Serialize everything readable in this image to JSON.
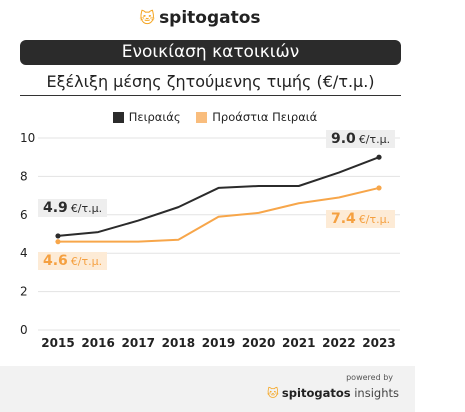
{
  "brand": {
    "name": "spitogatos",
    "icon": "cat-icon"
  },
  "header": {
    "title": "Ενοικίαση κατοικιών",
    "subtitle": "Εξέλιξη μέσης ζητούμενης τιμής (€/τ.μ.)"
  },
  "legend": [
    "Πειραιάς",
    "Προάστια Πειραιά"
  ],
  "annotations": {
    "unit": "€/τ.μ.",
    "piraeus_start": "4.9",
    "piraeus_end": "9.0",
    "suburbs_start": "4.6",
    "suburbs_end": "7.4"
  },
  "chart_data": {
    "type": "line",
    "x": [
      "2015",
      "2016",
      "2017",
      "2018",
      "2019",
      "2020",
      "2021",
      "2022",
      "2023"
    ],
    "series": [
      {
        "name": "Πειραιάς",
        "color": "#2b2b2b",
        "values": [
          4.9,
          5.1,
          5.7,
          6.4,
          7.4,
          7.5,
          7.5,
          8.2,
          9.0
        ]
      },
      {
        "name": "Προάστια Πειραιά",
        "color": "#f7a64a",
        "values": [
          4.6,
          4.6,
          4.6,
          4.7,
          5.9,
          6.1,
          6.6,
          6.9,
          7.4
        ]
      }
    ],
    "ylim": [
      0,
      10
    ],
    "yticks": [
      "0",
      "2",
      "4",
      "6",
      "8",
      "10"
    ],
    "grid": true,
    "legend_position": "top"
  },
  "footer": {
    "powered_by": "powered by",
    "brand": "spitogatos",
    "suffix": "insights"
  }
}
